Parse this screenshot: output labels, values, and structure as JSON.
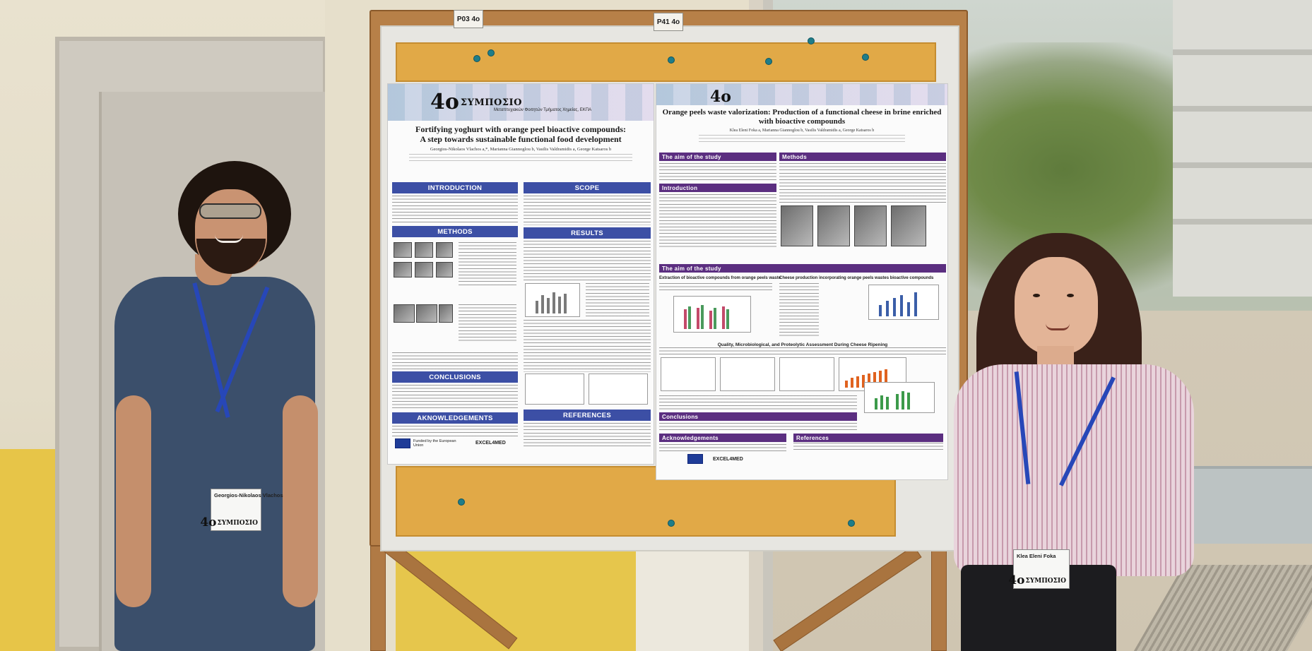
{
  "easel": {
    "tag_left": "P03 4o",
    "tag_right": "P41 4o"
  },
  "poster_left": {
    "logo_number": "4o",
    "logo_text": "ΣΥΜΠΟΣΙΟ",
    "logo_subtitle": "Μεταπτυχιακών Φοιτητών Τμήματος Χημείας, ΕΚΠΑ",
    "title_line1": "Fortifying yoghurt with orange peel bioactive compounds:",
    "title_line2": "A step towards sustainable functional food development",
    "authors": "Georgios-Nikolaos Vlachos a,*, Marianna Giannoglou b, Vasilis Valdramidis a, George Katsaros b",
    "sections": {
      "introduction": "INTRODUCTION",
      "scope": "SCOPE",
      "methods": "METHODS",
      "results": "RESULTS",
      "conclusions": "CONCLUSIONS",
      "acknowledgements": "AKNOWLEDGEMENTS",
      "references": "REFERENCES"
    },
    "funded_by": "Funded by the European Union",
    "footer_logo": "EXCEL4MED"
  },
  "poster_right": {
    "logo_number": "4o",
    "title_line1": "Orange peels waste valorization: Production of a functional cheese in brine enriched",
    "title_line2": "with bioactive compounds",
    "authors": "Klea Eleni Foka a, Marianna Giannoglou b, Vasilis Valdramidis a, George Katsaros b",
    "sections": {
      "aim": "The aim of the study",
      "methods": "Methods",
      "introduction": "Introduction",
      "aim2": "The aim of the study",
      "conclusions": "Conclusions",
      "acknowledgements": "Acknowledgements",
      "references": "References"
    },
    "subhead_extraction": "Extraction of bioactive compounds from orange peels waste",
    "subhead_cheese": "Cheese production incorporating orange peels wastes bioactive compounds",
    "subhead_quality": "Quality, Microbiological, and Proteolytic Assessment During Cheese Ripening",
    "footer_logo": "EXCEL4MED"
  },
  "badges": {
    "left_name": "Georgios-Nikolaos Vlachos",
    "left_logo_number": "4o",
    "left_logo_text": "ΣΥΜΠΟΣΙΟ",
    "right_name": "Klea Eleni Foka",
    "right_logo_number": "4o",
    "right_logo_text": "ΣΥΜΠΟΣΙΟ"
  },
  "colors": {
    "section_blue": "#3c4fa5",
    "section_purple": "#5b2e80",
    "cork": "#e1a947",
    "easel_wood": "#b07a45",
    "lanyard": "#2747b8"
  }
}
